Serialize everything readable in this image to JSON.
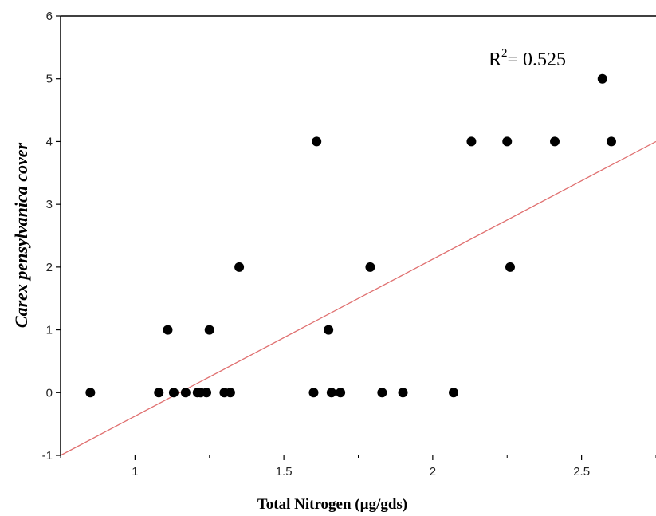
{
  "chart_data": {
    "type": "scatter",
    "title": "",
    "xlabel": "Total Nitrogen (µg/gds)",
    "ylabel": "Carex pensylvanica cover",
    "xlim": [
      0.75,
      2.75
    ],
    "ylim": [
      -1,
      6
    ],
    "x_ticks": [
      1,
      1.5,
      2,
      2.5
    ],
    "x_tick_labels": [
      "1",
      "1.5",
      "2",
      "2.5"
    ],
    "y_ticks": [
      -1,
      0,
      1,
      2,
      3,
      4,
      5,
      6
    ],
    "y_tick_labels": [
      "-1",
      "0",
      "1",
      "2",
      "3",
      "4",
      "5",
      "6"
    ],
    "grid": false,
    "annotation": {
      "base": "R",
      "superscript": "2",
      "text": "= 0.525"
    },
    "series": [
      {
        "marker_color": "#000000",
        "points": [
          {
            "x": 0.85,
            "y": 0
          },
          {
            "x": 1.08,
            "y": 0
          },
          {
            "x": 1.13,
            "y": 0
          },
          {
            "x": 1.17,
            "y": 0
          },
          {
            "x": 1.21,
            "y": 0
          },
          {
            "x": 1.22,
            "y": 0
          },
          {
            "x": 1.24,
            "y": 0
          },
          {
            "x": 1.3,
            "y": 0
          },
          {
            "x": 1.32,
            "y": 0
          },
          {
            "x": 1.6,
            "y": 0
          },
          {
            "x": 1.66,
            "y": 0
          },
          {
            "x": 1.69,
            "y": 0
          },
          {
            "x": 1.83,
            "y": 0
          },
          {
            "x": 1.9,
            "y": 0
          },
          {
            "x": 2.07,
            "y": 0
          },
          {
            "x": 1.11,
            "y": 1
          },
          {
            "x": 1.25,
            "y": 1
          },
          {
            "x": 1.65,
            "y": 1
          },
          {
            "x": 1.35,
            "y": 2
          },
          {
            "x": 1.79,
            "y": 2
          },
          {
            "x": 2.26,
            "y": 2
          },
          {
            "x": 1.61,
            "y": 4
          },
          {
            "x": 2.13,
            "y": 4
          },
          {
            "x": 2.25,
            "y": 4
          },
          {
            "x": 2.41,
            "y": 4
          },
          {
            "x": 2.6,
            "y": 4
          },
          {
            "x": 2.57,
            "y": 5
          }
        ]
      }
    ],
    "regression_line": {
      "color": "#e07070",
      "start": {
        "x": 0.75,
        "y": -1.0
      },
      "end": {
        "x": 2.75,
        "y": 4.0
      }
    },
    "colors": {
      "axis": "#000000",
      "marker": "#000000",
      "fit_line": "#e07070"
    }
  }
}
